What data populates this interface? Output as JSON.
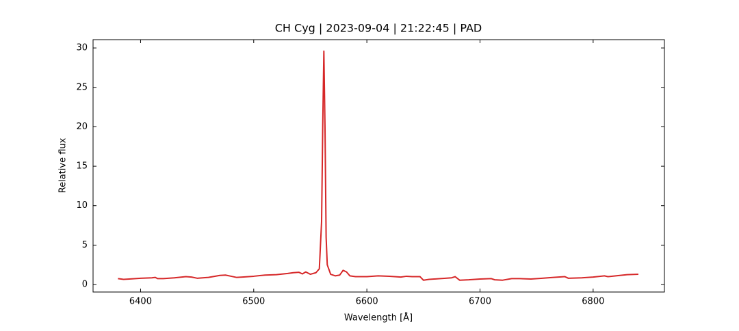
{
  "chart_data": {
    "type": "line",
    "title": "CH Cyg | 2023-09-04 | 21:22:45 | PAD",
    "x_label": "Wavelength [Å]",
    "y_label": "Relative flux",
    "xlim": [
      6358,
      6863
    ],
    "ylim": [
      -0.95,
      31.05
    ],
    "xticks": [
      6400,
      6500,
      6600,
      6700,
      6800
    ],
    "yticks": [
      0,
      5,
      10,
      15,
      20,
      25,
      30
    ],
    "grid": false,
    "series": [
      {
        "name": "CH Cyg",
        "color": "#d62728",
        "x": [
          6380,
          6385,
          6390,
          6400,
          6410,
          6413,
          6415,
          6420,
          6430,
          6440,
          6445,
          6450,
          6460,
          6470,
          6475,
          6480,
          6485,
          6490,
          6500,
          6510,
          6520,
          6530,
          6535,
          6540,
          6543,
          6546,
          6550,
          6555,
          6558,
          6560,
          6561,
          6562,
          6563,
          6564,
          6565,
          6568,
          6572,
          6576,
          6579,
          6582,
          6585,
          6590,
          6600,
          6610,
          6620,
          6630,
          6635,
          6640,
          6647,
          6650,
          6655,
          6665,
          6675,
          6678,
          6682,
          6690,
          6700,
          6710,
          6713,
          6720,
          6728,
          6735,
          6745,
          6755,
          6765,
          6775,
          6778,
          6790,
          6800,
          6810,
          6813,
          6820,
          6830,
          6840
        ],
        "values": [
          0.75,
          0.65,
          0.7,
          0.8,
          0.85,
          0.9,
          0.75,
          0.75,
          0.85,
          1.0,
          0.95,
          0.8,
          0.9,
          1.15,
          1.2,
          1.05,
          0.9,
          0.95,
          1.05,
          1.2,
          1.25,
          1.4,
          1.5,
          1.55,
          1.35,
          1.6,
          1.3,
          1.5,
          2.0,
          8,
          20,
          29.6,
          20,
          6,
          2.5,
          1.3,
          1.1,
          1.2,
          1.8,
          1.6,
          1.1,
          1.0,
          1.0,
          1.1,
          1.05,
          0.95,
          1.05,
          1.0,
          1.0,
          0.55,
          0.65,
          0.75,
          0.85,
          1.0,
          0.55,
          0.6,
          0.7,
          0.75,
          0.6,
          0.55,
          0.75,
          0.75,
          0.7,
          0.8,
          0.9,
          1.0,
          0.8,
          0.85,
          0.95,
          1.1,
          1.0,
          1.1,
          1.25,
          1.3
        ]
      }
    ]
  }
}
